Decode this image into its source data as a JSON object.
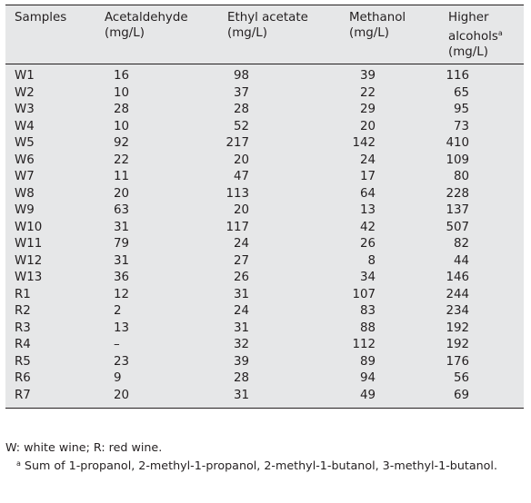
{
  "table": {
    "headers": [
      {
        "line1": "Samples",
        "line2": "",
        "line3": ""
      },
      {
        "line1": "Acetaldehyde",
        "line2": "(mg/L)",
        "line3": ""
      },
      {
        "line1": "Ethyl acetate",
        "line2": "(mg/L)",
        "line3": ""
      },
      {
        "line1": "Methanol",
        "line2": "(mg/L)",
        "line3": ""
      },
      {
        "line1": "Higher",
        "line2": "alcohols",
        "line2_sup": "a",
        "line3": "(mg/L)"
      }
    ],
    "rows": [
      [
        "W1",
        "16",
        "98",
        "39",
        "116"
      ],
      [
        "W2",
        "10",
        "37",
        "22",
        "65"
      ],
      [
        "W3",
        "28",
        "28",
        "29",
        "95"
      ],
      [
        "W4",
        "10",
        "52",
        "20",
        "73"
      ],
      [
        "W5",
        "92",
        "217",
        "142",
        "410"
      ],
      [
        "W6",
        "22",
        "20",
        "24",
        "109"
      ],
      [
        "W7",
        "11",
        "47",
        "17",
        "80"
      ],
      [
        "W8",
        "20",
        "113",
        "64",
        "228"
      ],
      [
        "W9",
        "63",
        "20",
        "13",
        "137"
      ],
      [
        "W10",
        "31",
        "117",
        "42",
        "507"
      ],
      [
        "W11",
        "79",
        "24",
        "26",
        "82"
      ],
      [
        "W12",
        "31",
        "27",
        "8",
        "44"
      ],
      [
        "W13",
        "36",
        "26",
        "34",
        "146"
      ],
      [
        "R1",
        "12",
        "31",
        "107",
        "244"
      ],
      [
        "R2",
        "2",
        "24",
        "83",
        "234"
      ],
      [
        "R3",
        "13",
        "31",
        "88",
        "192"
      ],
      [
        "R4",
        "–",
        "32",
        "112",
        "192"
      ],
      [
        "R5",
        "23",
        "39",
        "89",
        "176"
      ],
      [
        "R6",
        "9",
        "28",
        "94",
        "56"
      ],
      [
        "R7",
        "20",
        "31",
        "49",
        "69"
      ]
    ]
  },
  "footnotes": {
    "legend": "W: white wine; R: red wine.",
    "note_marker": "a",
    "note_text": "Sum of 1-propanol, 2-methyl-1-propanol, 2-methyl-1-butanol, 3-methyl-1-butanol."
  }
}
